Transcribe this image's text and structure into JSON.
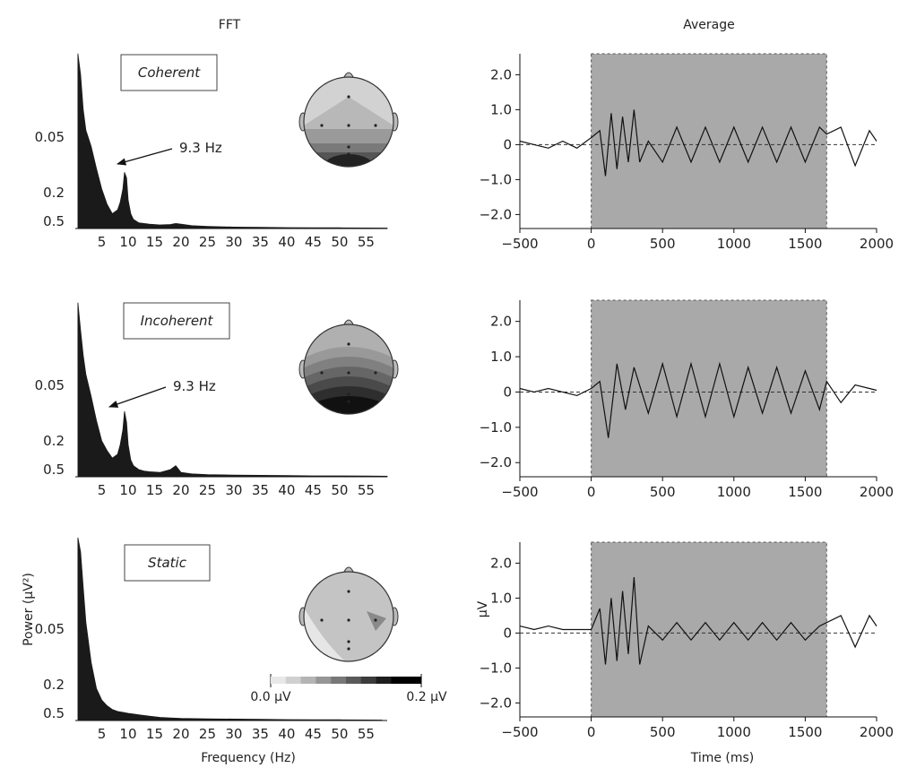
{
  "columns": {
    "left_title": "FFT",
    "right_title": "Average"
  },
  "fft": {
    "xlabel": "Frequency (Hz)",
    "ylabel": "Power (µV²)",
    "x_ticks": [
      "5",
      "10",
      "15",
      "20",
      "25",
      "30",
      "35",
      "40",
      "45",
      "50",
      "55"
    ],
    "x_tick_values": [
      5,
      10,
      15,
      20,
      25,
      30,
      35,
      40,
      45,
      50,
      55
    ],
    "y_ticks": [
      "0.5",
      "0.2",
      "0.05"
    ]
  },
  "erp": {
    "xlabel": "Time (ms)",
    "ylabel": "µV",
    "x_ticks": [
      "−500",
      "0",
      "500",
      "1000",
      "1500",
      "2000"
    ],
    "x_tick_values": [
      -500,
      0,
      500,
      1000,
      1500,
      2000
    ],
    "y_ticks": [
      "2.0",
      "1.0",
      "0",
      "−1.0",
      "−2.0"
    ],
    "y_tick_values": [
      2,
      1,
      0,
      -1,
      -2
    ],
    "xlim": [
      -500,
      2000
    ],
    "ylim": [
      -2.4,
      2.6
    ],
    "stimulus_window": [
      0,
      1650
    ]
  },
  "colorbar": {
    "min_label": "0.0 µV",
    "max_label": "0.2 µV"
  },
  "colors": {
    "spectrum_fill": "#1a1a1a",
    "stim_shade": "#a9a9a9",
    "trace": "#111111"
  },
  "chart_data": [
    {
      "type": "area",
      "panel": "FFT",
      "condition": "Coherent",
      "peak_annotation": "9.3 Hz",
      "peak_frequency": 9.3,
      "xlabel": "",
      "ylabel": "",
      "x": [
        0.5,
        1,
        1.5,
        2,
        3,
        4,
        5,
        6,
        7,
        8,
        8.5,
        9,
        9.3,
        9.7,
        10,
        10.5,
        11,
        12,
        13,
        14,
        16,
        18,
        19,
        20,
        22,
        25,
        30,
        35,
        40,
        45,
        50,
        55,
        59
      ],
      "y": [
        1.1,
        0.95,
        0.7,
        0.55,
        0.45,
        0.33,
        0.22,
        0.14,
        0.09,
        0.11,
        0.15,
        0.22,
        0.31,
        0.28,
        0.16,
        0.09,
        0.06,
        0.04,
        0.035,
        0.03,
        0.025,
        0.028,
        0.035,
        0.03,
        0.02,
        0.015,
        0.01,
        0.008,
        0.006,
        0.005,
        0.005,
        0.004,
        0.003
      ]
    },
    {
      "type": "area",
      "panel": "FFT",
      "condition": "Incoherent",
      "peak_annotation": "9.3 Hz",
      "peak_frequency": 9.3,
      "xlabel": "",
      "ylabel": "",
      "x": [
        0.5,
        1,
        1.5,
        2,
        3,
        4,
        5,
        6,
        7,
        8,
        8.5,
        9,
        9.3,
        9.7,
        10,
        10.5,
        11,
        12,
        13,
        14,
        16,
        18,
        19,
        20,
        22,
        25,
        30,
        35,
        40,
        45,
        50,
        55,
        59
      ],
      "y": [
        1.1,
        0.9,
        0.72,
        0.58,
        0.44,
        0.31,
        0.2,
        0.15,
        0.11,
        0.13,
        0.18,
        0.26,
        0.36,
        0.3,
        0.18,
        0.1,
        0.07,
        0.05,
        0.04,
        0.035,
        0.03,
        0.05,
        0.07,
        0.03,
        0.02,
        0.015,
        0.012,
        0.01,
        0.008,
        0.006,
        0.006,
        0.005,
        0.004
      ]
    },
    {
      "type": "area",
      "panel": "FFT",
      "condition": "Static",
      "xlabel": "",
      "ylabel": "",
      "x": [
        0.5,
        1,
        1.5,
        2,
        3,
        4,
        5,
        6,
        7,
        8,
        9,
        10,
        11,
        12,
        13,
        14,
        16,
        18,
        20,
        25,
        30,
        35,
        40,
        45,
        50,
        55,
        58
      ],
      "y": [
        1.15,
        1.05,
        0.8,
        0.55,
        0.32,
        0.18,
        0.12,
        0.09,
        0.07,
        0.06,
        0.055,
        0.05,
        0.045,
        0.04,
        0.035,
        0.03,
        0.022,
        0.018,
        0.015,
        0.012,
        0.01,
        0.008,
        0.006,
        0.005,
        0.005,
        0.004,
        0.003
      ]
    },
    {
      "type": "line",
      "panel": "Average",
      "condition": "Coherent",
      "xlabel": "",
      "ylabel": "",
      "xlim": [
        -500,
        2000
      ],
      "ylim": [
        -2.4,
        2.6
      ],
      "x": [
        -500,
        -400,
        -300,
        -200,
        -100,
        0,
        60,
        100,
        140,
        180,
        220,
        260,
        300,
        340,
        400,
        500,
        600,
        700,
        800,
        900,
        1000,
        1100,
        1200,
        1300,
        1400,
        1500,
        1600,
        1650,
        1750,
        1850,
        1950,
        2000
      ],
      "y": [
        0.1,
        0.0,
        -0.1,
        0.1,
        -0.1,
        0.2,
        0.4,
        -0.9,
        0.9,
        -0.7,
        0.8,
        -0.5,
        1.0,
        -0.5,
        0.1,
        -0.5,
        0.5,
        -0.5,
        0.5,
        -0.5,
        0.5,
        -0.5,
        0.5,
        -0.5,
        0.5,
        -0.5,
        0.5,
        0.3,
        0.5,
        -0.6,
        0.4,
        0.1
      ]
    },
    {
      "type": "line",
      "panel": "Average",
      "condition": "Incoherent",
      "xlabel": "",
      "ylabel": "",
      "xlim": [
        -500,
        2000
      ],
      "ylim": [
        -2.4,
        2.6
      ],
      "x": [
        -500,
        -400,
        -300,
        -200,
        -100,
        0,
        60,
        120,
        180,
        240,
        300,
        400,
        500,
        600,
        700,
        800,
        900,
        1000,
        1100,
        1200,
        1300,
        1400,
        1500,
        1600,
        1650,
        1750,
        1850,
        1950,
        2000
      ],
      "y": [
        0.1,
        0.0,
        0.1,
        0.0,
        -0.1,
        0.1,
        0.3,
        -1.3,
        0.8,
        -0.5,
        0.7,
        -0.6,
        0.8,
        -0.7,
        0.8,
        -0.7,
        0.8,
        -0.7,
        0.7,
        -0.6,
        0.7,
        -0.6,
        0.6,
        -0.5,
        0.3,
        -0.3,
        0.2,
        0.1,
        0.05
      ]
    },
    {
      "type": "line",
      "panel": "Average",
      "condition": "Static",
      "xlabel": "",
      "ylabel": "",
      "xlim": [
        -500,
        2000
      ],
      "ylim": [
        -2.4,
        2.6
      ],
      "x": [
        -500,
        -400,
        -300,
        -200,
        -100,
        0,
        60,
        100,
        140,
        180,
        220,
        260,
        300,
        340,
        400,
        500,
        600,
        700,
        800,
        900,
        1000,
        1100,
        1200,
        1300,
        1400,
        1500,
        1600,
        1650,
        1750,
        1850,
        1950,
        2000
      ],
      "y": [
        0.2,
        0.1,
        0.2,
        0.1,
        0.1,
        0.1,
        0.7,
        -0.9,
        1.0,
        -0.8,
        1.2,
        -0.6,
        1.6,
        -0.9,
        0.2,
        -0.2,
        0.3,
        -0.2,
        0.3,
        -0.2,
        0.3,
        -0.2,
        0.3,
        -0.2,
        0.3,
        -0.2,
        0.2,
        0.3,
        0.5,
        -0.4,
        0.5,
        0.2
      ]
    }
  ]
}
